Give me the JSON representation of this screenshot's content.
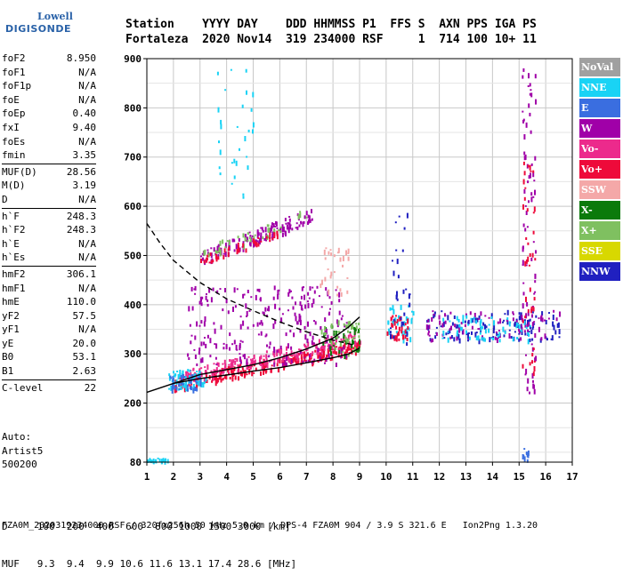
{
  "logo": {
    "line1": "Lowell",
    "line2": "DIGISONDE"
  },
  "header": {
    "labels": "Station    YYYY DAY    DDD HHMMSS P1  FFS S  AXN PPS IGA PS",
    "values": "Fortaleza  2020 Nov14  319 234000 RSF     1  714 100 10+ 11"
  },
  "params": [
    {
      "group": [
        {
          "label": "foF2",
          "value": "8.950"
        },
        {
          "label": "foF1",
          "value": "N/A"
        },
        {
          "label": "foF1p",
          "value": "N/A"
        },
        {
          "label": "foE",
          "value": "N/A"
        },
        {
          "label": "foEp",
          "value": "0.40"
        },
        {
          "label": "fxI",
          "value": "9.40"
        },
        {
          "label": "foEs",
          "value": "N/A"
        },
        {
          "label": "fmin",
          "value": "3.35"
        }
      ]
    },
    {
      "group": [
        {
          "label": "MUF(D)",
          "value": "28.56"
        },
        {
          "label": "M(D)",
          "value": "3.19"
        },
        {
          "label": "D",
          "value": "N/A"
        }
      ]
    },
    {
      "group": [
        {
          "label": "h`F",
          "value": "248.3"
        },
        {
          "label": "h`F2",
          "value": "248.3"
        },
        {
          "label": "h`E",
          "value": "N/A"
        },
        {
          "label": "h`Es",
          "value": "N/A"
        }
      ]
    },
    {
      "group": [
        {
          "label": "hmF2",
          "value": "306.1"
        },
        {
          "label": "hmF1",
          "value": "N/A"
        },
        {
          "label": "hmE",
          "value": "110.0"
        },
        {
          "label": "yF2",
          "value": "57.5"
        },
        {
          "label": "yF1",
          "value": "N/A"
        },
        {
          "label": "yE",
          "value": "20.0"
        },
        {
          "label": "B0",
          "value": "53.1"
        },
        {
          "label": "B1",
          "value": "2.63"
        }
      ]
    },
    {
      "group": [
        {
          "label": "C-level",
          "value": "22"
        }
      ]
    }
  ],
  "auto": {
    "line1": "Auto:",
    "line2": "Artist5",
    "line3": "500200"
  },
  "dmuf": {
    "d_line": "D     100  200  400  600  800 1000 1500 3000 [km]",
    "muf_line": "MUF   9.3  9.4  9.9 10.6 11.6 13.1 17.4 28.6 [MHz]"
  },
  "footer": "FZA0M_2020319234000.RSF / 320fx256h 50 kHz 5.0 km / DPS-4 FZA0M 904 / 3.9 S 321.6 E   Ion2Png 1.3.20",
  "legend": [
    {
      "label": "NoVal",
      "color": "#a0a0a0"
    },
    {
      "label": "NNE",
      "color": "#19d3f5"
    },
    {
      "label": "E",
      "color": "#3a6ee0"
    },
    {
      "label": "W",
      "color": "#a000a8"
    },
    {
      "label": "Vo-",
      "color": "#ec2a8c"
    },
    {
      "label": "Vo+",
      "color": "#ee0a3a"
    },
    {
      "label": "SSW",
      "color": "#f4a8a8"
    },
    {
      "label": "X-",
      "color": "#0b7a0b"
    },
    {
      "label": "X+",
      "color": "#7fc060"
    },
    {
      "label": "SSE",
      "color": "#d8d800"
    },
    {
      "label": "NNW",
      "color": "#2020c0"
    }
  ],
  "chart_data": {
    "type": "scatter",
    "title": "",
    "xlabel": "",
    "ylabel": "",
    "xlim": [
      1,
      17
    ],
    "ylim": [
      80,
      900
    ],
    "x_ticks": [
      1,
      2,
      3,
      4,
      5,
      6,
      7,
      8,
      9,
      10,
      11,
      12,
      13,
      14,
      15,
      16,
      17
    ],
    "y_ticks": [
      80,
      200,
      300,
      400,
      500,
      600,
      700,
      800,
      900
    ],
    "grid": true,
    "series": [
      {
        "name": "",
        "style": "solid",
        "color": "#000000",
        "x": [
          1.0,
          2.0,
          3.0,
          4.0,
          5.0,
          6.0,
          7.0,
          8.0,
          8.6,
          9.0
        ],
        "y": [
          222,
          240,
          250,
          257,
          265,
          272,
          282,
          292,
          300,
          312
        ]
      },
      {
        "name": "",
        "style": "dashed",
        "color": "#000000",
        "x": [
          1.0,
          1.5,
          2.0,
          3.0,
          4.0,
          5.0,
          6.0,
          7.0,
          8.0,
          8.8
        ],
        "y": [
          565,
          525,
          490,
          445,
          412,
          388,
          365,
          345,
          328,
          318
        ]
      },
      {
        "name": "",
        "style": "solid",
        "color": "#000000",
        "x": [
          2.0,
          3.0,
          4.0,
          5.0,
          6.0,
          7.0,
          8.0,
          8.6,
          9.0
        ],
        "y": [
          240,
          258,
          268,
          278,
          292,
          310,
          332,
          355,
          375
        ]
      }
    ],
    "clusters": [
      {
        "color": "#ee0a3a",
        "x": [
          2.0,
          9.0
        ],
        "y": [
          228,
          330
        ],
        "n": 260,
        "trend": true
      },
      {
        "color": "#ec2a8c",
        "x": [
          2.2,
          9.0
        ],
        "y": [
          240,
          350
        ],
        "n": 200,
        "trend": true
      },
      {
        "color": "#19d3f5",
        "x": [
          1.8,
          3.2
        ],
        "y": [
          230,
          270
        ],
        "n": 60
      },
      {
        "color": "#3a6ee0",
        "x": [
          1.8,
          3.0
        ],
        "y": [
          230,
          260
        ],
        "n": 40
      },
      {
        "color": "#a000a8",
        "x": [
          2.5,
          8.5
        ],
        "y": [
          280,
          440
        ],
        "n": 240
      },
      {
        "color": "#0b7a0b",
        "x": [
          7.5,
          9.0
        ],
        "y": [
          300,
          360
        ],
        "n": 40
      },
      {
        "color": "#7fc060",
        "x": [
          7.5,
          9.0
        ],
        "y": [
          300,
          370
        ],
        "n": 40
      },
      {
        "color": "#f4a8a8",
        "x": [
          7.5,
          8.6
        ],
        "y": [
          420,
          520
        ],
        "n": 30
      },
      {
        "color": "#a000a8",
        "x": [
          3.0,
          7.2
        ],
        "y": [
          480,
          600
        ],
        "n": 140,
        "trend": true
      },
      {
        "color": "#7fc060",
        "x": [
          3.0,
          7.2
        ],
        "y": [
          490,
          600
        ],
        "n": 40,
        "trend": true
      },
      {
        "color": "#ee0a3a",
        "x": [
          3.0,
          6.0
        ],
        "y": [
          480,
          560
        ],
        "n": 40,
        "trend": true
      },
      {
        "color": "#19d3f5",
        "x": [
          3.5,
          5.0
        ],
        "y": [
          620,
          880
        ],
        "n": 30
      },
      {
        "color": "#19d3f5",
        "x": [
          10.0,
          11.0
        ],
        "y": [
          330,
          400
        ],
        "n": 40
      },
      {
        "color": "#ee0a3a",
        "x": [
          10.0,
          10.8
        ],
        "y": [
          330,
          380
        ],
        "n": 30
      },
      {
        "color": "#2020c0",
        "x": [
          10.1,
          10.9
        ],
        "y": [
          320,
          600
        ],
        "n": 30
      },
      {
        "color": "#2020c0",
        "x": [
          11.5,
          16.5
        ],
        "y": [
          330,
          390
        ],
        "n": 120
      },
      {
        "color": "#a000a8",
        "x": [
          11.5,
          16.5
        ],
        "y": [
          330,
          390
        ],
        "n": 80
      },
      {
        "color": "#19d3f5",
        "x": [
          12.0,
          15.5
        ],
        "y": [
          330,
          380
        ],
        "n": 60
      },
      {
        "color": "#a000a8",
        "x": [
          15.1,
          15.6
        ],
        "y": [
          200,
          900
        ],
        "n": 80
      },
      {
        "color": "#ee0a3a",
        "x": [
          15.1,
          15.6
        ],
        "y": [
          260,
          700
        ],
        "n": 40
      },
      {
        "color": "#19d3f5",
        "x": [
          1.0,
          1.8
        ],
        "y": [
          84,
          90
        ],
        "n": 20
      },
      {
        "color": "#3a6ee0",
        "x": [
          15.1,
          15.4
        ],
        "y": [
          80,
          110
        ],
        "n": 10
      }
    ]
  }
}
